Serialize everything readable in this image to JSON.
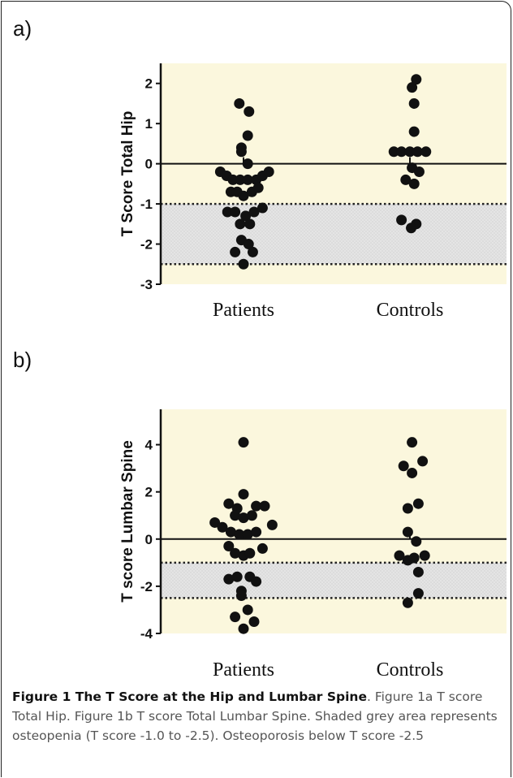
{
  "panels": {
    "a": {
      "letter": "a)"
    },
    "b": {
      "letter": "b)"
    }
  },
  "chart_data": [
    {
      "type": "scatter",
      "title": "",
      "xlabel": "",
      "ylabel": "T Score Total Hip",
      "categories": [
        "Patients",
        "Controls"
      ],
      "ylim": [
        -3,
        2.5
      ],
      "yticks": [
        "2",
        "1",
        "0",
        "-1",
        "-2",
        "-3"
      ],
      "reference_line": 0,
      "shaded_band": [
        -2.5,
        -1.0
      ],
      "colors": {
        "background": "#fbf7dd",
        "band": "#dcdcdc",
        "points": "#111111"
      },
      "series": [
        {
          "category": "Patients",
          "points": [
            {
              "dx": -0.1,
              "y": 1.5
            },
            {
              "dx": 0.13,
              "y": 1.3
            },
            {
              "dx": 0.1,
              "y": 0.7
            },
            {
              "dx": -0.05,
              "y": 0.4
            },
            {
              "dx": -0.05,
              "y": 0.3
            },
            {
              "dx": 0.1,
              "y": 0.0
            },
            {
              "dx": -0.55,
              "y": -0.2
            },
            {
              "dx": -0.4,
              "y": -0.3
            },
            {
              "dx": -0.25,
              "y": -0.4
            },
            {
              "dx": -0.08,
              "y": -0.4
            },
            {
              "dx": 0.1,
              "y": -0.4
            },
            {
              "dx": 0.3,
              "y": -0.4
            },
            {
              "dx": 0.45,
              "y": -0.3
            },
            {
              "dx": 0.6,
              "y": -0.2
            },
            {
              "dx": -0.3,
              "y": -0.7
            },
            {
              "dx": -0.15,
              "y": -0.7
            },
            {
              "dx": 0.0,
              "y": -0.8
            },
            {
              "dx": 0.2,
              "y": -0.7
            },
            {
              "dx": 0.35,
              "y": -0.6
            },
            {
              "dx": -0.38,
              "y": -1.2
            },
            {
              "dx": -0.2,
              "y": -1.2
            },
            {
              "dx": 0.05,
              "y": -1.3
            },
            {
              "dx": 0.25,
              "y": -1.2
            },
            {
              "dx": 0.45,
              "y": -1.1
            },
            {
              "dx": -0.08,
              "y": -1.5
            },
            {
              "dx": 0.15,
              "y": -1.5
            },
            {
              "dx": -0.05,
              "y": -1.9
            },
            {
              "dx": 0.12,
              "y": -2.0
            },
            {
              "dx": -0.2,
              "y": -2.2
            },
            {
              "dx": 0.22,
              "y": -2.2
            },
            {
              "dx": 0.0,
              "y": -2.5
            }
          ]
        },
        {
          "category": "Controls",
          "points": [
            {
              "dx": 0.15,
              "y": 2.1
            },
            {
              "dx": 0.05,
              "y": 1.9
            },
            {
              "dx": 0.1,
              "y": 1.5
            },
            {
              "dx": 0.1,
              "y": 0.8
            },
            {
              "dx": -0.38,
              "y": 0.3
            },
            {
              "dx": -0.2,
              "y": 0.3
            },
            {
              "dx": 0.0,
              "y": 0.3
            },
            {
              "dx": 0.18,
              "y": 0.3
            },
            {
              "dx": 0.38,
              "y": 0.3
            },
            {
              "dx": 0.05,
              "y": -0.1
            },
            {
              "dx": 0.22,
              "y": -0.2
            },
            {
              "dx": -0.1,
              "y": -0.4
            },
            {
              "dx": 0.1,
              "y": -0.5
            },
            {
              "dx": -0.2,
              "y": -1.4
            },
            {
              "dx": 0.15,
              "y": -1.5
            },
            {
              "dx": 0.03,
              "y": -1.6
            }
          ]
        }
      ]
    },
    {
      "type": "scatter",
      "title": "",
      "xlabel": "",
      "ylabel": "T score Lumbar Spine",
      "categories": [
        "Patients",
        "Controls"
      ],
      "ylim": [
        -4,
        5.5
      ],
      "yticks": [
        "4",
        "2",
        "0",
        "-2",
        "-4"
      ],
      "reference_line": 0,
      "shaded_band": [
        -2.5,
        -1.0
      ],
      "colors": {
        "background": "#fbf7dd",
        "band": "#dcdcdc",
        "points": "#111111"
      },
      "series": [
        {
          "category": "Patients",
          "points": [
            {
              "dx": 0.0,
              "y": 4.1
            },
            {
              "dx": 0.0,
              "y": 1.9
            },
            {
              "dx": -0.35,
              "y": 1.5
            },
            {
              "dx": -0.15,
              "y": 1.3
            },
            {
              "dx": 0.3,
              "y": 1.4
            },
            {
              "dx": 0.5,
              "y": 1.4
            },
            {
              "dx": -0.2,
              "y": 1.0
            },
            {
              "dx": 0.0,
              "y": 0.9
            },
            {
              "dx": 0.2,
              "y": 1.0
            },
            {
              "dx": -0.68,
              "y": 0.7
            },
            {
              "dx": -0.5,
              "y": 0.5
            },
            {
              "dx": -0.3,
              "y": 0.3
            },
            {
              "dx": -0.1,
              "y": 0.2
            },
            {
              "dx": 0.1,
              "y": 0.2
            },
            {
              "dx": 0.3,
              "y": 0.3
            },
            {
              "dx": 0.68,
              "y": 0.6
            },
            {
              "dx": -0.35,
              "y": -0.3
            },
            {
              "dx": 0.45,
              "y": -0.4
            },
            {
              "dx": -0.2,
              "y": -0.6
            },
            {
              "dx": 0.0,
              "y": -0.7
            },
            {
              "dx": 0.15,
              "y": -0.6
            },
            {
              "dx": -0.35,
              "y": -1.7
            },
            {
              "dx": -0.15,
              "y": -1.6
            },
            {
              "dx": 0.15,
              "y": -1.6
            },
            {
              "dx": 0.3,
              "y": -1.8
            },
            {
              "dx": -0.05,
              "y": -2.2
            },
            {
              "dx": -0.05,
              "y": -2.4
            },
            {
              "dx": 0.1,
              "y": -3.0
            },
            {
              "dx": -0.2,
              "y": -3.3
            },
            {
              "dx": 0.25,
              "y": -3.5
            },
            {
              "dx": 0.0,
              "y": -3.8
            }
          ]
        },
        {
          "category": "Controls",
          "points": [
            {
              "dx": 0.05,
              "y": 4.1
            },
            {
              "dx": -0.15,
              "y": 3.1
            },
            {
              "dx": 0.3,
              "y": 3.3
            },
            {
              "dx": 0.05,
              "y": 2.8
            },
            {
              "dx": -0.05,
              "y": 1.3
            },
            {
              "dx": 0.2,
              "y": 1.5
            },
            {
              "dx": -0.05,
              "y": 0.3
            },
            {
              "dx": 0.15,
              "y": -0.1
            },
            {
              "dx": -0.25,
              "y": -0.7
            },
            {
              "dx": -0.05,
              "y": -0.9
            },
            {
              "dx": 0.1,
              "y": -0.8
            },
            {
              "dx": 0.35,
              "y": -0.7
            },
            {
              "dx": 0.2,
              "y": -1.4
            },
            {
              "dx": 0.2,
              "y": -2.3
            },
            {
              "dx": -0.05,
              "y": -2.7
            }
          ]
        }
      ]
    }
  ],
  "caption": {
    "title": "Figure 1 The T Score at the Hip and Lumbar Spine",
    "body": ". Figure 1a T score Total Hip. Figure 1b T score Total Lumbar Spine. Shaded grey area represents osteopenia (T score -1.0 to -2.5). Osteoporosis below T score -2.5"
  }
}
